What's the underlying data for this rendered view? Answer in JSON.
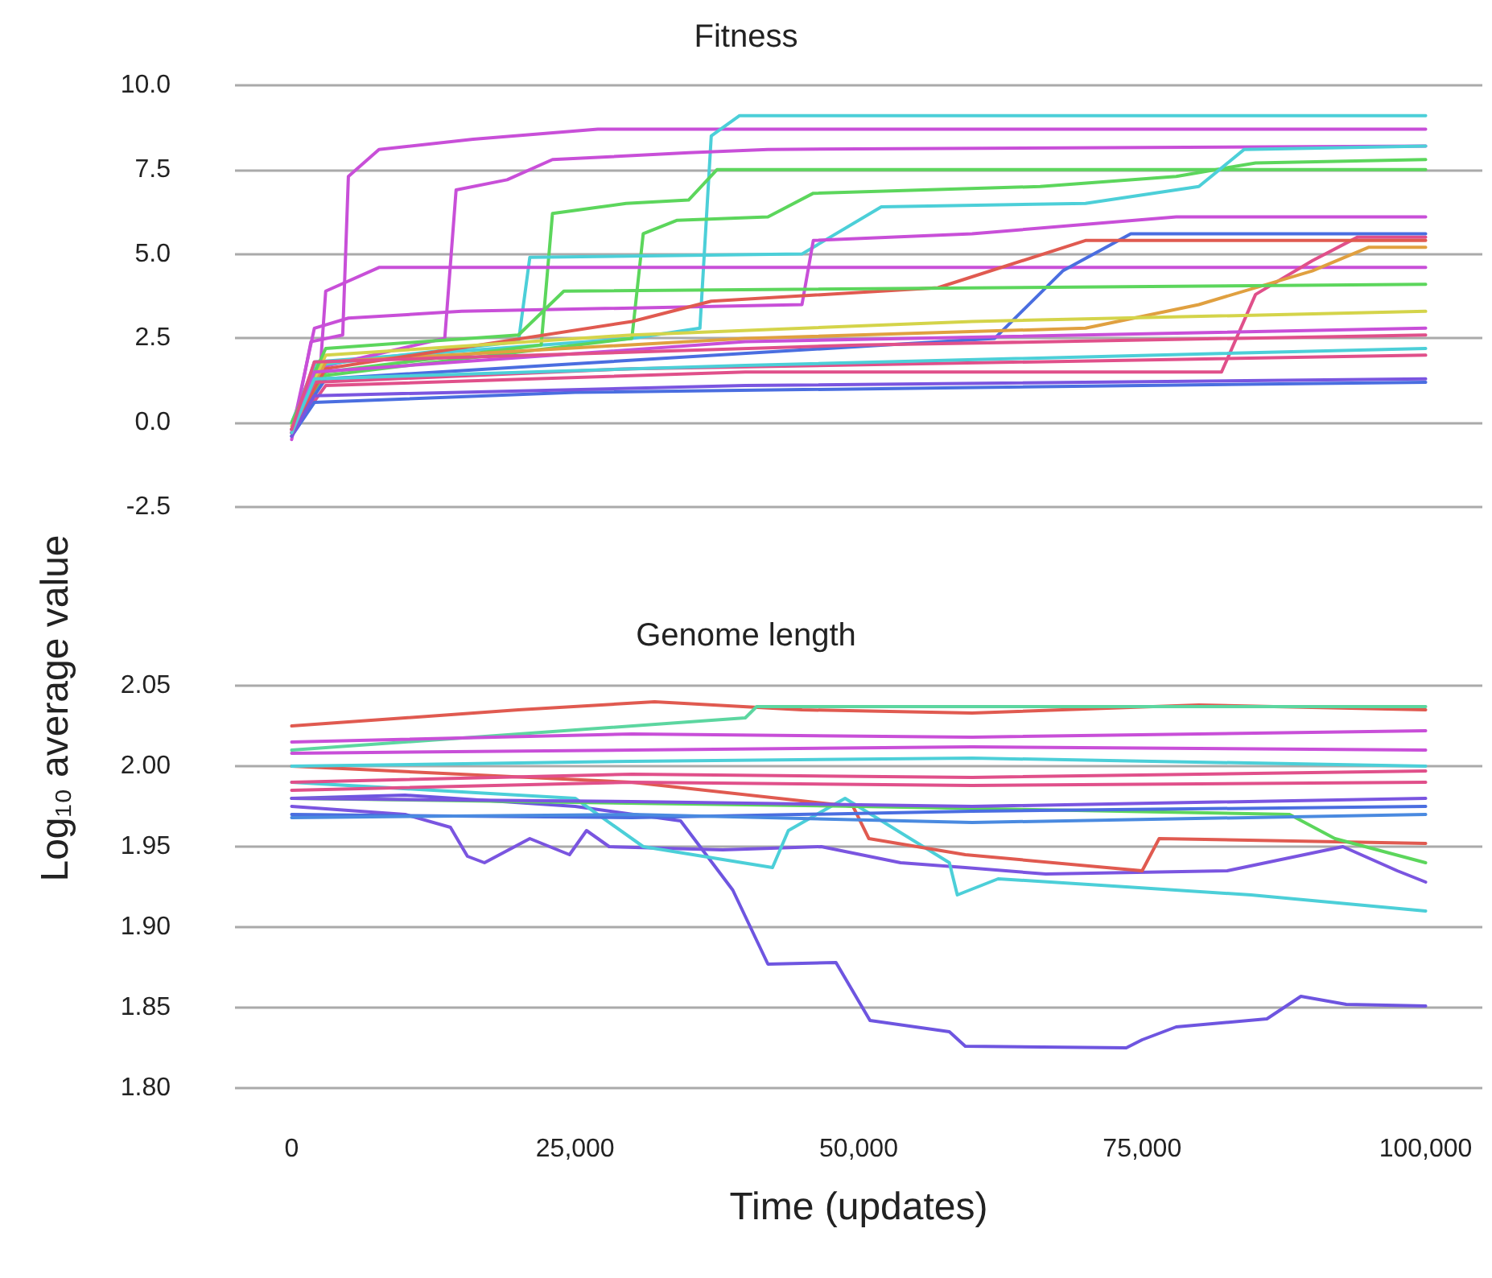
{
  "chart_data": [
    {
      "type": "line",
      "title": "Fitness",
      "ylabel": "Log₁₀ average value",
      "xlim": [
        -5000,
        105000
      ],
      "ylim": [
        -2.5,
        10
      ],
      "yticks": [
        {
          "value": -2.5,
          "label": "-2.5"
        },
        {
          "value": 0,
          "label": "0.0"
        },
        {
          "value": 2.5,
          "label": "2.5"
        },
        {
          "value": 5,
          "label": "5.0"
        },
        {
          "value": 7.5,
          "label": "7.5"
        },
        {
          "value": 10,
          "label": "10.0"
        }
      ],
      "tick_labels": "y",
      "grid": "y",
      "marker": "none",
      "line_style": "solid",
      "series": [
        {
          "color": "#c84fd8",
          "x": [
            0,
            1700,
            4500,
            5000,
            7700,
            16000,
            27000,
            100000
          ],
          "values": [
            -0.5,
            2.4,
            2.6,
            7.3,
            8.1,
            8.4,
            8.7,
            8.7
          ]
        },
        {
          "color": "#4ccfd8",
          "x": [
            0,
            2000,
            30000,
            36000,
            37000,
            39500,
            100000
          ],
          "values": [
            -0.4,
            1.8,
            2.5,
            2.8,
            8.5,
            9.1,
            9.1
          ]
        },
        {
          "color": "#c84fd8",
          "x": [
            0,
            2000,
            13500,
            14500,
            19000,
            23000,
            35000,
            42000,
            100000
          ],
          "values": [
            -0.3,
            1.6,
            2.5,
            6.9,
            7.2,
            7.8,
            8.0,
            8.1,
            8.2
          ]
        },
        {
          "color": "#5cd65c",
          "x": [
            0,
            3000,
            22000,
            23000,
            29500,
            35000,
            37500,
            100000
          ],
          "values": [
            -0.2,
            1.5,
            2.3,
            6.2,
            6.5,
            6.6,
            7.5,
            7.5
          ]
        },
        {
          "color": "#5cd65c",
          "x": [
            0,
            3000,
            30000,
            31000,
            34000,
            42000,
            46000,
            66000,
            78000,
            85000,
            100000
          ],
          "values": [
            -0.2,
            1.4,
            2.5,
            5.6,
            6.0,
            6.1,
            6.8,
            7.0,
            7.3,
            7.7,
            7.8
          ]
        },
        {
          "color": "#4ccfd8",
          "x": [
            0,
            2000,
            20000,
            21000,
            45000,
            52000,
            70000,
            80000,
            84000,
            100000
          ],
          "values": [
            0,
            1.7,
            2.4,
            4.9,
            5.0,
            6.4,
            6.5,
            7.0,
            8.1,
            8.2
          ]
        },
        {
          "color": "#c84fd8",
          "x": [
            0,
            2500,
            3000,
            7700,
            100000
          ],
          "values": [
            -0.3,
            1.5,
            3.9,
            4.6,
            4.6
          ]
        },
        {
          "color": "#c84fd8",
          "x": [
            0,
            2000,
            5000,
            15000,
            45000,
            46000,
            60000,
            78000,
            100000
          ],
          "values": [
            -0.3,
            2.8,
            3.1,
            3.3,
            3.5,
            5.4,
            5.6,
            6.1,
            6.1
          ]
        },
        {
          "color": "#4a6ee0",
          "x": [
            0,
            3000,
            62000,
            68000,
            74000,
            100000
          ],
          "values": [
            -0.2,
            1.3,
            2.5,
            4.5,
            5.6,
            5.6
          ]
        },
        {
          "color": "#e0508a",
          "x": [
            0,
            3000,
            40000,
            82000,
            85000,
            90000,
            94000,
            100000
          ],
          "values": [
            -0.3,
            1.1,
            1.5,
            1.5,
            3.8,
            4.8,
            5.5,
            5.5
          ]
        },
        {
          "color": "#e0a040",
          "x": [
            0,
            3000,
            40000,
            70000,
            80000,
            90000,
            95000,
            100000
          ],
          "values": [
            -0.2,
            1.8,
            2.5,
            2.8,
            3.5,
            4.5,
            5.2,
            5.2
          ]
        },
        {
          "color": "#e05a50",
          "x": [
            0,
            3000,
            30000,
            37000,
            57000,
            70000,
            100000
          ],
          "values": [
            -0.2,
            1.6,
            3.0,
            3.6,
            4.0,
            5.4,
            5.4
          ]
        },
        {
          "color": "#d4d44a",
          "x": [
            0,
            3000,
            30000,
            60000,
            100000
          ],
          "values": [
            -0.1,
            2.0,
            2.6,
            3.0,
            3.3
          ]
        },
        {
          "color": "#5cd65c",
          "x": [
            0,
            3000,
            20000,
            24000,
            100000
          ],
          "values": [
            0,
            2.2,
            2.6,
            3.9,
            4.1
          ]
        },
        {
          "color": "#4a6ee0",
          "x": [
            0,
            2000,
            25000,
            100000
          ],
          "values": [
            -0.4,
            0.6,
            0.9,
            1.2
          ]
        },
        {
          "color": "#7a55e0",
          "x": [
            0,
            2000,
            40000,
            100000
          ],
          "values": [
            -0.4,
            0.8,
            1.1,
            1.3
          ]
        },
        {
          "color": "#e0508a",
          "x": [
            0,
            2000,
            30000,
            100000
          ],
          "values": [
            -0.3,
            1.2,
            1.6,
            2.0
          ]
        },
        {
          "color": "#c84fd8",
          "x": [
            0,
            2000,
            40000,
            100000
          ],
          "values": [
            -0.2,
            1.5,
            2.4,
            2.8
          ]
        },
        {
          "color": "#4ccfd8",
          "x": [
            0,
            2000,
            40000,
            100000
          ],
          "values": [
            -0.3,
            1.3,
            1.7,
            2.2
          ]
        },
        {
          "color": "#e0508a",
          "x": [
            0,
            2000,
            50000,
            100000
          ],
          "values": [
            -0.2,
            1.8,
            2.3,
            2.6
          ]
        }
      ]
    },
    {
      "type": "line",
      "title": "Genome length",
      "xlabel": "Time (updates)",
      "xlim": [
        -5000,
        105000
      ],
      "ylim": [
        1.8,
        2.05
      ],
      "xticks": [
        {
          "value": 0,
          "label": "0"
        },
        {
          "value": 25000,
          "label": "25,000"
        },
        {
          "value": 50000,
          "label": "50,000"
        },
        {
          "value": 75000,
          "label": "75,000"
        },
        {
          "value": 100000,
          "label": "100,000"
        }
      ],
      "yticks": [
        {
          "value": 1.8,
          "label": "1.80"
        },
        {
          "value": 1.85,
          "label": "1.85"
        },
        {
          "value": 1.9,
          "label": "1.90"
        },
        {
          "value": 1.95,
          "label": "1.95"
        },
        {
          "value": 2.0,
          "label": "2.00"
        },
        {
          "value": 2.05,
          "label": "2.05"
        }
      ],
      "grid": "y",
      "marker": "none",
      "line_style": "solid",
      "series": [
        {
          "color": "#6e55e0",
          "x": [
            0,
            10000,
            25000,
            34300,
            38900,
            42000,
            48000,
            51000,
            58000,
            59400,
            73600,
            75000,
            78000,
            86000,
            89000,
            93000,
            100000
          ],
          "values": [
            1.98,
            1.982,
            1.975,
            1.966,
            1.923,
            1.877,
            1.878,
            1.842,
            1.835,
            1.826,
            1.825,
            1.83,
            1.838,
            1.843,
            1.857,
            1.852,
            1.851
          ]
        },
        {
          "color": "#7a55e0",
          "x": [
            0,
            10000,
            14000,
            15500,
            17000,
            21000,
            24500,
            26000,
            28000,
            38000,
            46700,
            53700,
            59400,
            66500,
            82500,
            92700,
            97500,
            100000
          ],
          "values": [
            1.975,
            1.97,
            1.962,
            1.944,
            1.94,
            1.955,
            1.945,
            1.96,
            1.95,
            1.948,
            1.95,
            1.94,
            1.937,
            1.933,
            1.935,
            1.95,
            1.935,
            1.928
          ]
        },
        {
          "color": "#4ccfd8",
          "x": [
            0,
            25000,
            31000,
            42400,
            43800,
            48800,
            58000,
            58700,
            62300,
            73600,
            84600,
            100000
          ],
          "values": [
            1.99,
            1.98,
            1.95,
            1.937,
            1.96,
            1.98,
            1.94,
            1.92,
            1.93,
            1.925,
            1.92,
            1.91
          ]
        },
        {
          "color": "#e05a50",
          "x": [
            0,
            30000,
            49500,
            50900,
            59400,
            75000,
            76500,
            100000
          ],
          "values": [
            2.0,
            1.99,
            1.975,
            1.955,
            1.945,
            1.935,
            1.955,
            1.952
          ]
        },
        {
          "color": "#5cd65c",
          "x": [
            0,
            50000,
            88000,
            92000,
            100000
          ],
          "values": [
            1.98,
            1.975,
            1.97,
            1.955,
            1.94
          ]
        },
        {
          "color": "#e05a50",
          "x": [
            0,
            10000,
            20000,
            32000,
            45000,
            60000,
            80000,
            100000
          ],
          "values": [
            2.025,
            2.03,
            2.035,
            2.04,
            2.035,
            2.033,
            2.038,
            2.035
          ]
        },
        {
          "color": "#5cd6a0",
          "x": [
            0,
            40000,
            41000,
            100000
          ],
          "values": [
            2.01,
            2.03,
            2.037,
            2.037
          ]
        },
        {
          "color": "#c84fd8",
          "x": [
            0,
            30000,
            60000,
            100000
          ],
          "values": [
            2.015,
            2.02,
            2.018,
            2.022
          ]
        },
        {
          "color": "#4ccfd8",
          "x": [
            0,
            30000,
            60000,
            100000
          ],
          "values": [
            2.0,
            2.003,
            2.005,
            2.0
          ]
        },
        {
          "color": "#e0508a",
          "x": [
            0,
            30000,
            60000,
            100000
          ],
          "values": [
            1.99,
            1.995,
            1.993,
            1.997
          ]
        },
        {
          "color": "#c84fd8",
          "x": [
            0,
            30000,
            60000,
            100000
          ],
          "values": [
            2.008,
            2.01,
            2.012,
            2.01
          ]
        },
        {
          "color": "#4a6ee0",
          "x": [
            0,
            30000,
            60000,
            100000
          ],
          "values": [
            1.97,
            1.968,
            1.972,
            1.975
          ]
        },
        {
          "color": "#7a55e0",
          "x": [
            0,
            30000,
            60000,
            100000
          ],
          "values": [
            1.98,
            1.978,
            1.975,
            1.98
          ]
        },
        {
          "color": "#e0508a",
          "x": [
            0,
            30000,
            60000,
            100000
          ],
          "values": [
            1.985,
            1.99,
            1.988,
            1.99
          ]
        },
        {
          "color": "#4a8ae0",
          "x": [
            0,
            30000,
            60000,
            100000
          ],
          "values": [
            1.968,
            1.97,
            1.965,
            1.97
          ]
        }
      ]
    }
  ]
}
